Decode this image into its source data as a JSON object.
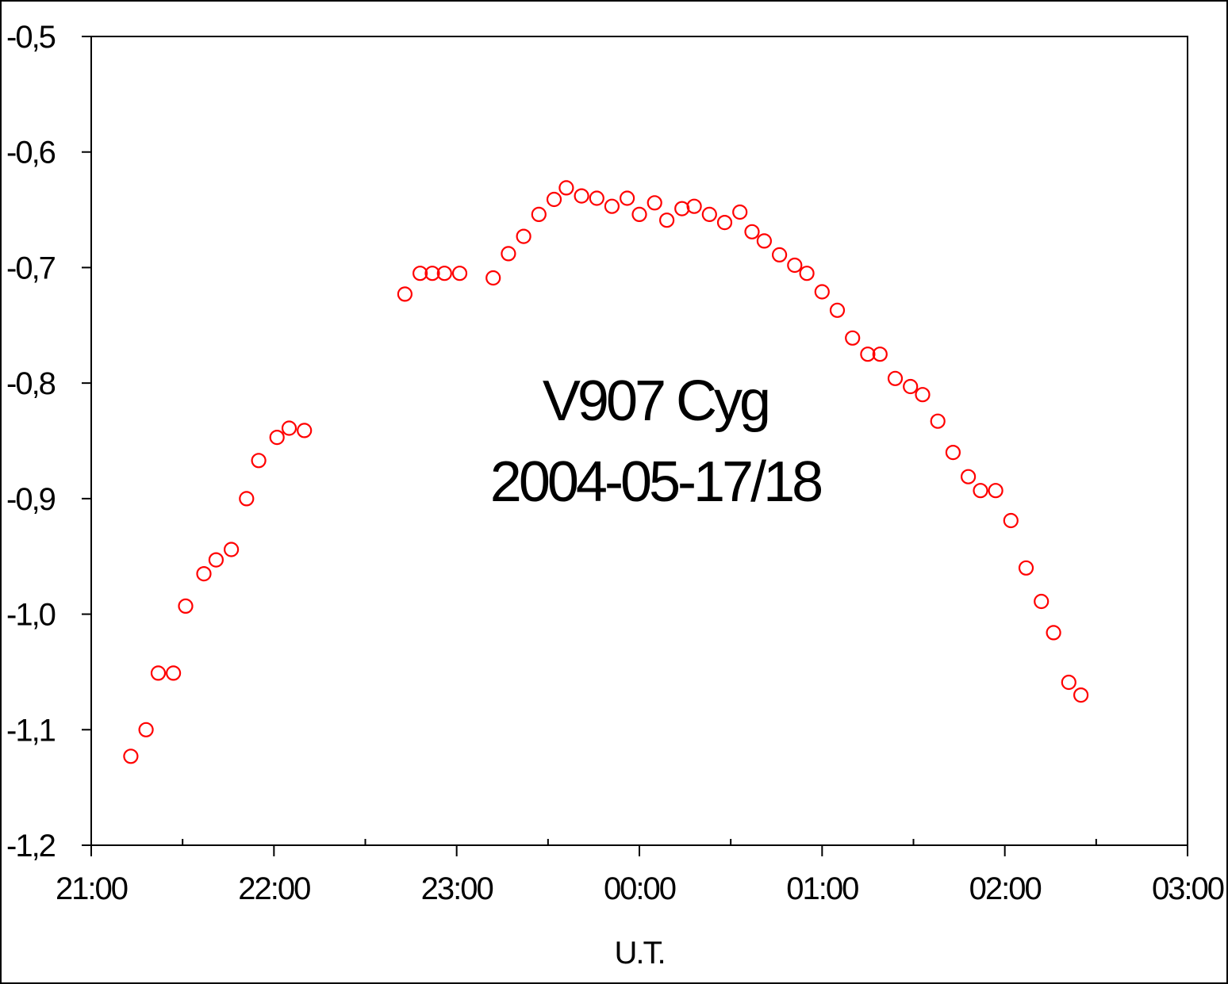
{
  "chart_data": {
    "type": "scatter",
    "title": "",
    "annotation_lines": [
      "V907 Cyg",
      "2004-05-17/18"
    ],
    "xlabel": "U.T.",
    "ylabel": "",
    "xlim": [
      "21:00",
      "03:00"
    ],
    "ylim": [
      -1.2,
      -0.5
    ],
    "x_tick_labels": [
      "21:00",
      "22:00",
      "23:00",
      "00:00",
      "01:00",
      "02:00",
      "03:00"
    ],
    "y_tick_labels": [
      "-0,5",
      "-0,6",
      "-0,7",
      "-0,8",
      "-0,9",
      "-1,0",
      "-1,1",
      "-1,2"
    ],
    "y_tick_values": [
      -0.5,
      -0.6,
      -0.7,
      -0.8,
      -0.9,
      -1.0,
      -1.1,
      -1.2
    ],
    "grid": false,
    "legend": "none",
    "marker": "open-circle",
    "marker_color": "#ff0000",
    "series": [
      {
        "x": [
          "21:13",
          "21:18",
          "21:22",
          "21:27",
          "21:31",
          "21:37",
          "21:41",
          "21:46",
          "21:51",
          "21:55",
          "22:01",
          "22:05",
          "22:10",
          "22:43",
          "22:48",
          "22:52",
          "22:56",
          "23:01",
          "23:12",
          "23:17",
          "23:22",
          "23:27",
          "23:32",
          "23:36",
          "23:41",
          "23:46",
          "23:51",
          "23:56",
          "00:00",
          "00:05",
          "00:09",
          "00:14",
          "00:18",
          "00:23",
          "00:28",
          "00:33",
          "00:37",
          "00:41",
          "00:46",
          "00:51",
          "00:55",
          "01:00",
          "01:05",
          "01:10",
          "01:15",
          "01:19",
          "01:24",
          "01:29",
          "01:33",
          "01:38",
          "01:43",
          "01:48",
          "01:52",
          "01:57",
          "02:02",
          "02:07",
          "02:12",
          "02:16",
          "02:21",
          "02:25"
        ],
        "y": [
          -1.123,
          -1.1,
          -1.051,
          -1.051,
          -0.993,
          -0.965,
          -0.953,
          -0.944,
          -0.9,
          -0.867,
          -0.847,
          -0.839,
          -0.841,
          -0.723,
          -0.705,
          -0.705,
          -0.705,
          -0.705,
          -0.709,
          -0.688,
          -0.673,
          -0.654,
          -0.641,
          -0.631,
          -0.638,
          -0.64,
          -0.647,
          -0.64,
          -0.654,
          -0.644,
          -0.659,
          -0.649,
          -0.647,
          -0.654,
          -0.661,
          -0.652,
          -0.669,
          -0.677,
          -0.689,
          -0.698,
          -0.705,
          -0.721,
          -0.737,
          -0.761,
          -0.775,
          -0.775,
          -0.796,
          -0.803,
          -0.81,
          -0.833,
          -0.86,
          -0.881,
          -0.893,
          -0.893,
          -0.919,
          -0.96,
          -0.989,
          -1.016,
          -1.059,
          -1.07
        ]
      }
    ]
  }
}
